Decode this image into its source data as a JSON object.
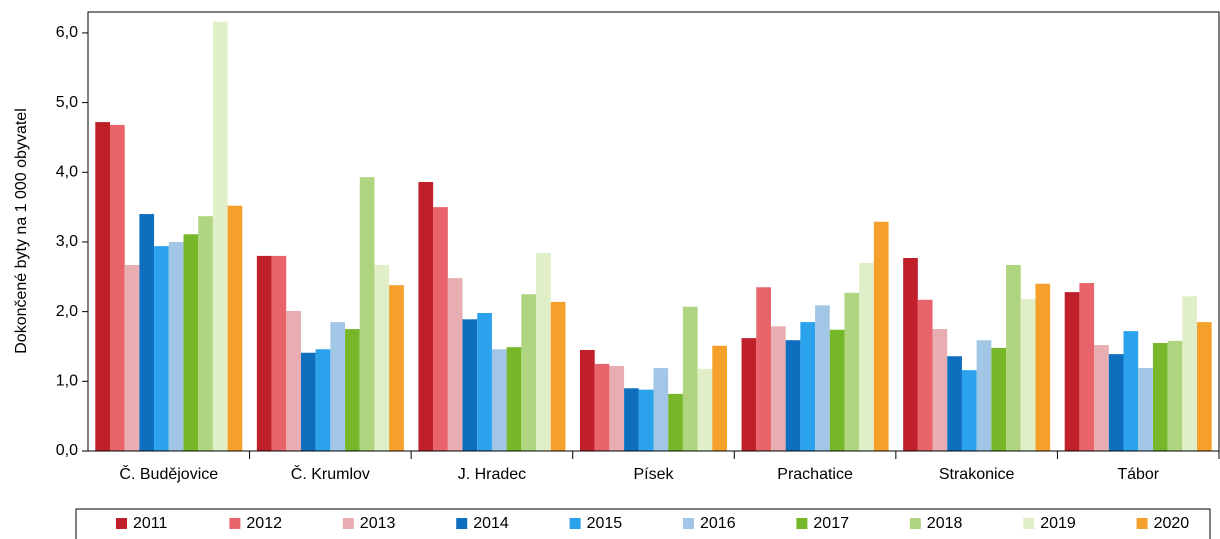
{
  "chart_data": {
    "type": "bar",
    "y_label": "Dokončené byty na 1 000 obyvatel",
    "categories": [
      "Č. Budějovice",
      "Č. Krumlov",
      "J. Hradec",
      "Písek",
      "Prachatice",
      "Strakonice",
      "Tábor"
    ],
    "series": [
      {
        "name": "2011",
        "color": "#c0202a",
        "values": [
          4.72,
          2.8,
          3.86,
          1.45,
          1.62,
          2.77,
          2.28
        ]
      },
      {
        "name": "2012",
        "color": "#e8636a",
        "values": [
          4.68,
          2.8,
          3.5,
          1.25,
          2.35,
          2.17,
          2.41
        ]
      },
      {
        "name": "2013",
        "color": "#e8adb0",
        "values": [
          2.67,
          2.01,
          2.48,
          1.22,
          1.79,
          1.75,
          1.52
        ]
      },
      {
        "name": "2014",
        "color": "#0f6fbf",
        "values": [
          3.4,
          1.41,
          1.89,
          0.9,
          1.59,
          1.36,
          1.39
        ]
      },
      {
        "name": "2015",
        "color": "#2aa2ec",
        "values": [
          2.94,
          1.46,
          1.98,
          0.88,
          1.85,
          1.16,
          1.72
        ]
      },
      {
        "name": "2016",
        "color": "#a2c7e6",
        "values": [
          3.0,
          1.85,
          1.46,
          1.19,
          2.09,
          1.59,
          1.19
        ]
      },
      {
        "name": "2017",
        "color": "#76b82a",
        "values": [
          3.11,
          1.75,
          1.49,
          0.82,
          1.74,
          1.48,
          1.55
        ]
      },
      {
        "name": "2018",
        "color": "#b0d580",
        "values": [
          3.37,
          3.93,
          2.25,
          2.07,
          2.27,
          2.67,
          1.58
        ]
      },
      {
        "name": "2019",
        "color": "#e0efc8",
        "values": [
          6.16,
          2.67,
          2.84,
          1.18,
          2.7,
          2.18,
          2.22
        ]
      },
      {
        "name": "2020",
        "color": "#f5a02a",
        "values": [
          3.52,
          2.38,
          2.14,
          1.51,
          3.29,
          2.4,
          1.85
        ]
      }
    ],
    "ylim": [
      0,
      6.3
    ],
    "yticks": [
      {
        "value": 0,
        "label": "0,0"
      },
      {
        "value": 1,
        "label": "1,0"
      },
      {
        "value": 2,
        "label": "2,0"
      },
      {
        "value": 3,
        "label": "3,0"
      },
      {
        "value": 4,
        "label": "4,0"
      },
      {
        "value": 5,
        "label": "5,0"
      },
      {
        "value": 6,
        "label": "6,0"
      }
    ],
    "grid": false,
    "legend": "bottom"
  }
}
